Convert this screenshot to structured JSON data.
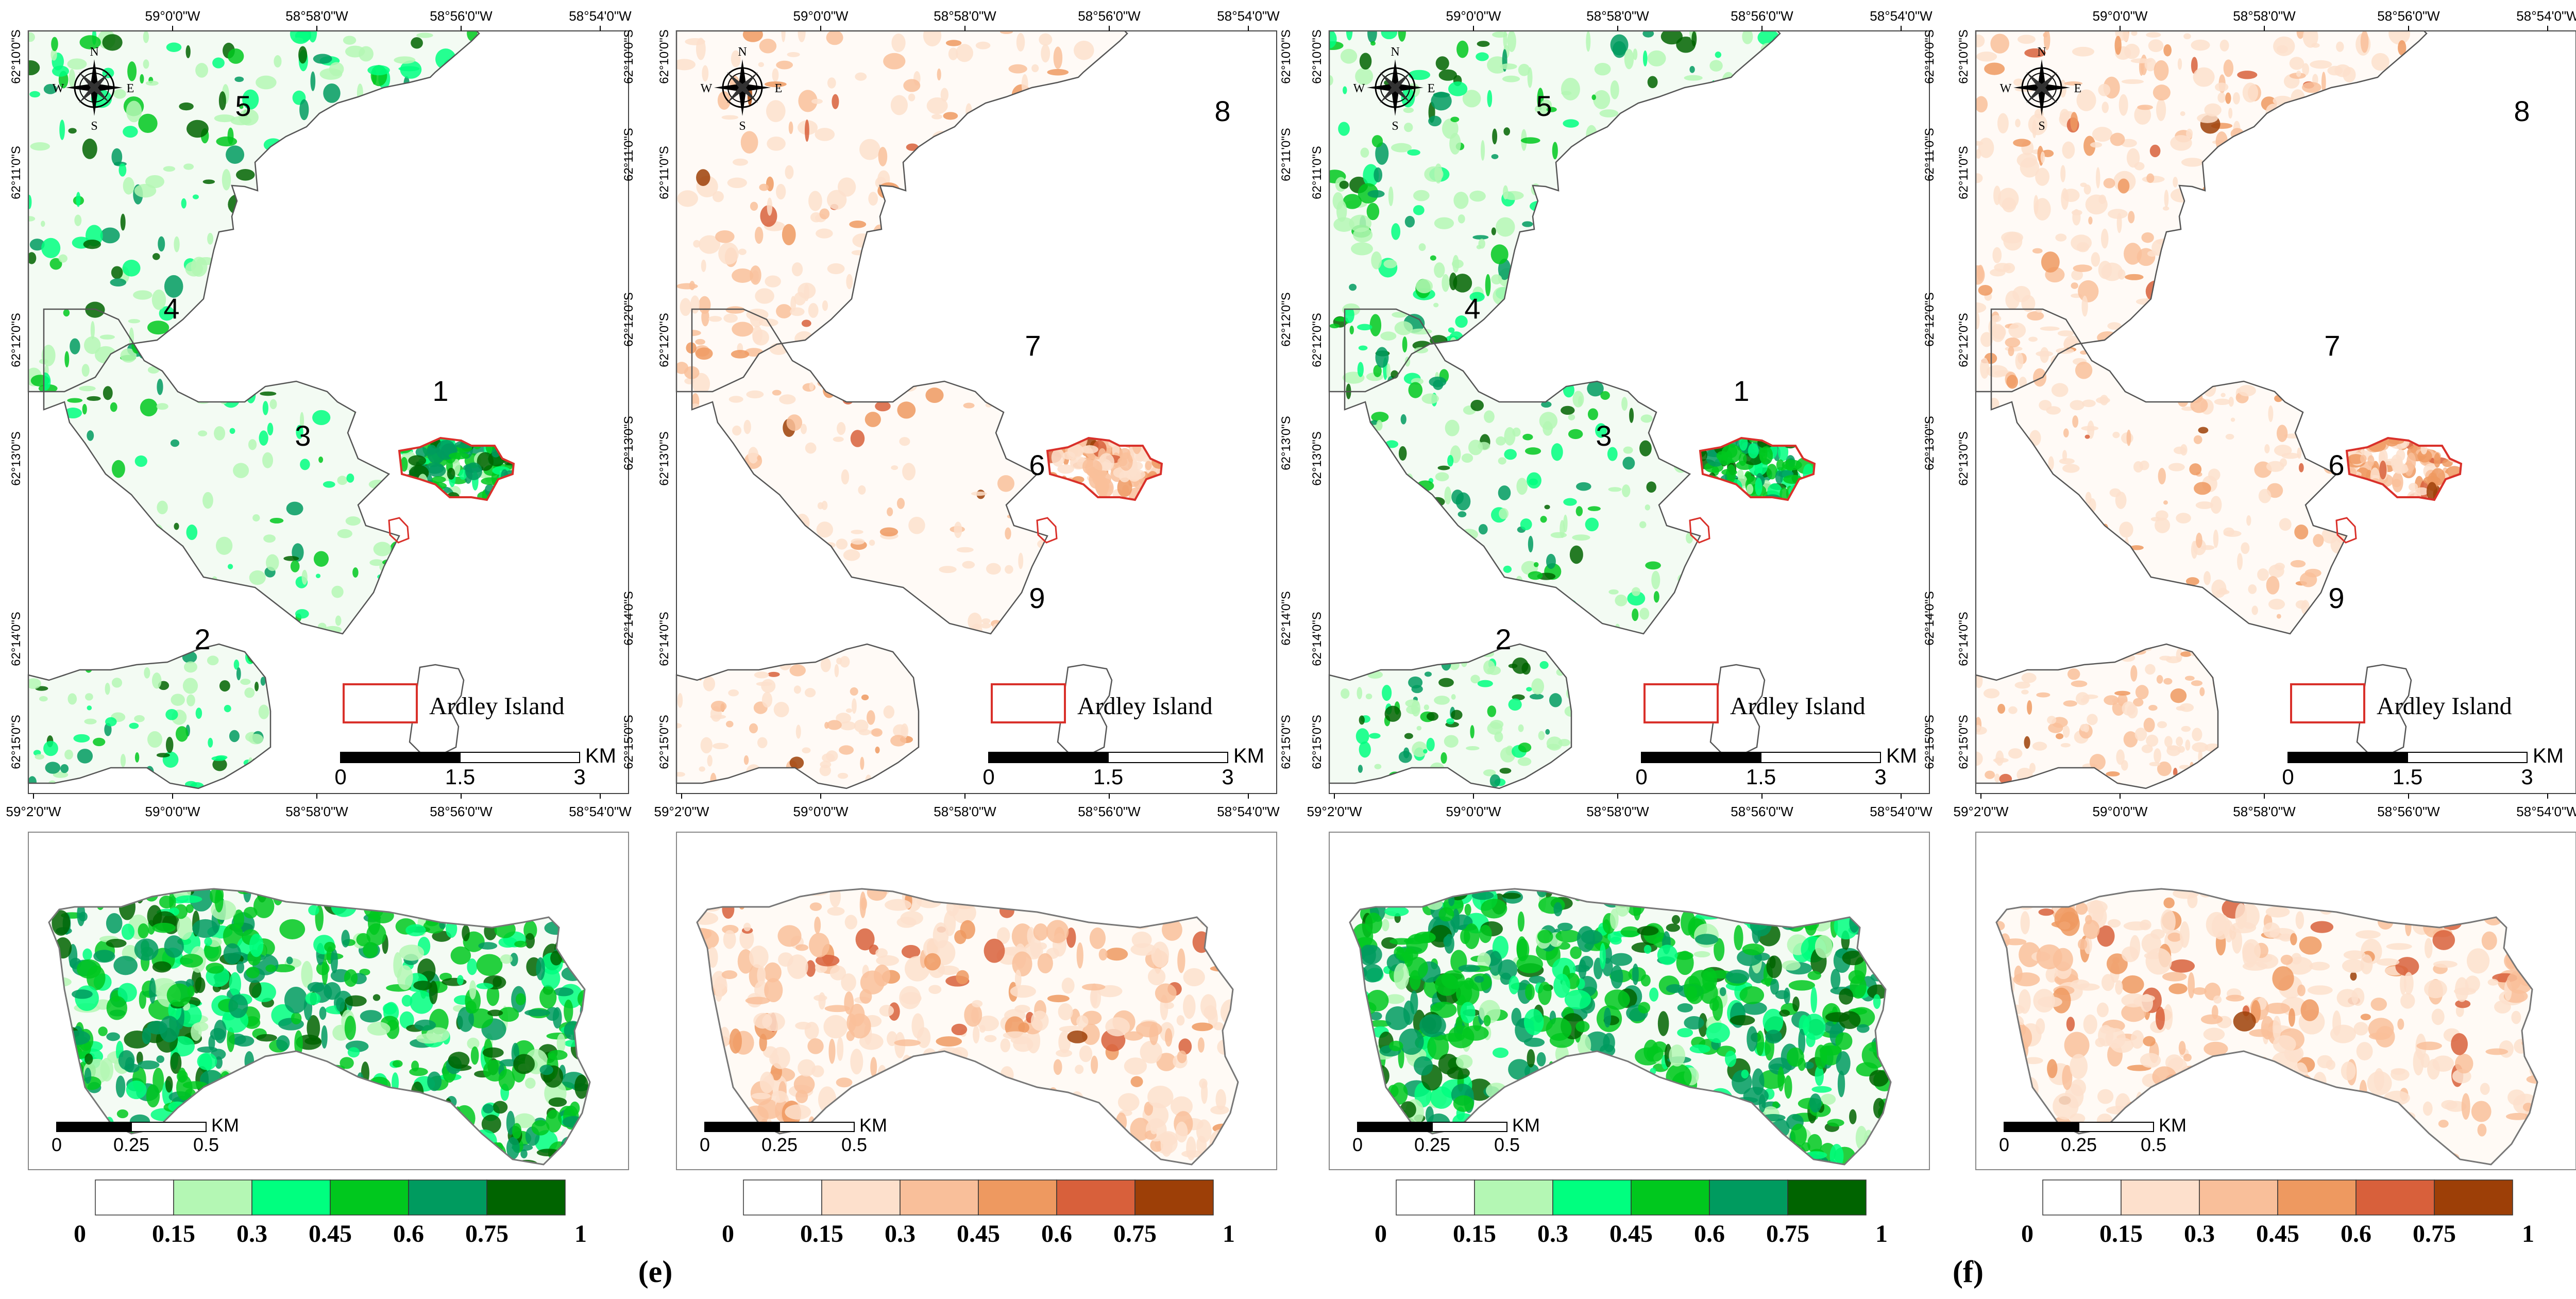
{
  "figure": {
    "subfigure_labels": [
      "(e)",
      "(f)"
    ],
    "colors": {
      "green_scale": [
        "#ffffff",
        "#b4f7b4",
        "#00ff7f",
        "#00c81e",
        "#009b5f",
        "#006400"
      ],
      "orange_scale": [
        "#ffffff",
        "#fde0cc",
        "#f9bf9a",
        "#ee9960",
        "#d8603b",
        "#9d3f07"
      ],
      "ardley_outline": "#d9302a",
      "coast": "#555555"
    },
    "legend_ticks": [
      "0",
      "0.15",
      "0.3",
      "0.45",
      "0.6",
      "0.75",
      "1"
    ],
    "panels": [
      {
        "theme": "green",
        "top_lon_ticks": [
          "59°0'0\"W",
          "58°58'0\"W",
          "58°56'0\"W",
          "58°54'0\"W"
        ],
        "bottom_lon_ticks": [
          "59°2'0\"W",
          "59°0'0\"W",
          "58°58'0\"W",
          "58°56'0\"W",
          "58°54'0\"W"
        ],
        "lat_ticks": [
          "62°10'0\"S",
          "62°11'0\"S",
          "62°12'0\"S",
          "62°13'0\"S",
          "62°14'0\"S",
          "62°15'0\"S"
        ],
        "site_numbers": [
          "5",
          "4",
          "3",
          "1",
          "2"
        ],
        "compass": [
          "N",
          "S",
          "W",
          "E"
        ],
        "legend_label": "Ardley Island",
        "scale_bar": {
          "ticks": [
            "0",
            "1.5",
            "3"
          ],
          "unit": "KM"
        },
        "inset_scale_bar": {
          "ticks": [
            "0",
            "0.25",
            "0.5"
          ],
          "unit": "KM"
        }
      },
      {
        "theme": "orange",
        "top_lon_ticks": [
          "59°0'0\"W",
          "58°58'0\"W",
          "58°56'0\"W",
          "58°54'0\"W"
        ],
        "bottom_lon_ticks": [
          "59°2'0\"W",
          "59°0'0\"W",
          "58°58'0\"W",
          "58°56'0\"W",
          "58°54'0\"W"
        ],
        "lat_ticks": [
          "62°10'0\"S",
          "62°11'0\"S",
          "62°12'0\"S",
          "62°13'0\"S",
          "62°14'0\"S",
          "62°15'0\"S"
        ],
        "site_numbers": [
          "8",
          "7",
          "6",
          "9"
        ],
        "compass": [
          "N",
          "S",
          "W",
          "E"
        ],
        "legend_label": "Ardley Island",
        "scale_bar": {
          "ticks": [
            "0",
            "1.5",
            "3"
          ],
          "unit": "KM"
        },
        "inset_scale_bar": {
          "ticks": [
            "0",
            "0.25",
            "0.5"
          ],
          "unit": "KM"
        }
      },
      {
        "theme": "green",
        "top_lon_ticks": [
          "59°0'0\"W",
          "58°58'0\"W",
          "58°56'0\"W",
          "58°54'0\"W"
        ],
        "bottom_lon_ticks": [
          "59°2'0\"W",
          "59°0'0\"W",
          "58°58'0\"W",
          "58°56'0\"W",
          "58°54'0\"W"
        ],
        "lat_ticks": [
          "62°10'0\"S",
          "62°11'0\"S",
          "62°12'0\"S",
          "62°13'0\"S",
          "62°14'0\"S",
          "62°15'0\"S"
        ],
        "site_numbers": [
          "5",
          "4",
          "3",
          "1",
          "2"
        ],
        "compass": [
          "N",
          "S",
          "W",
          "E"
        ],
        "legend_label": "Ardley Island",
        "scale_bar": {
          "ticks": [
            "0",
            "1.5",
            "3"
          ],
          "unit": "KM"
        },
        "inset_scale_bar": {
          "ticks": [
            "0",
            "0.25",
            "0.5"
          ],
          "unit": "KM"
        }
      },
      {
        "theme": "orange",
        "top_lon_ticks": [
          "59°0'0\"W",
          "58°58'0\"W",
          "58°56'0\"W",
          "58°54'0\"W"
        ],
        "bottom_lon_ticks": [
          "59°2'0\"W",
          "59°0'0\"W",
          "58°58'0\"W",
          "58°56'0\"W",
          "58°54'0\"W"
        ],
        "lat_ticks": [
          "62°10'0\"S",
          "62°11'0\"S",
          "62°12'0\"S",
          "62°13'0\"S",
          "62°14'0\"S",
          "62°15'0\"S"
        ],
        "site_numbers": [
          "8",
          "7",
          "6",
          "9"
        ],
        "compass": [
          "N",
          "S",
          "W",
          "E"
        ],
        "legend_label": "Ardley Island",
        "scale_bar": {
          "ticks": [
            "0",
            "1.5",
            "3"
          ],
          "unit": "KM"
        },
        "inset_scale_bar": {
          "ticks": [
            "0",
            "0.25",
            "0.5"
          ],
          "unit": "KM"
        }
      }
    ]
  }
}
